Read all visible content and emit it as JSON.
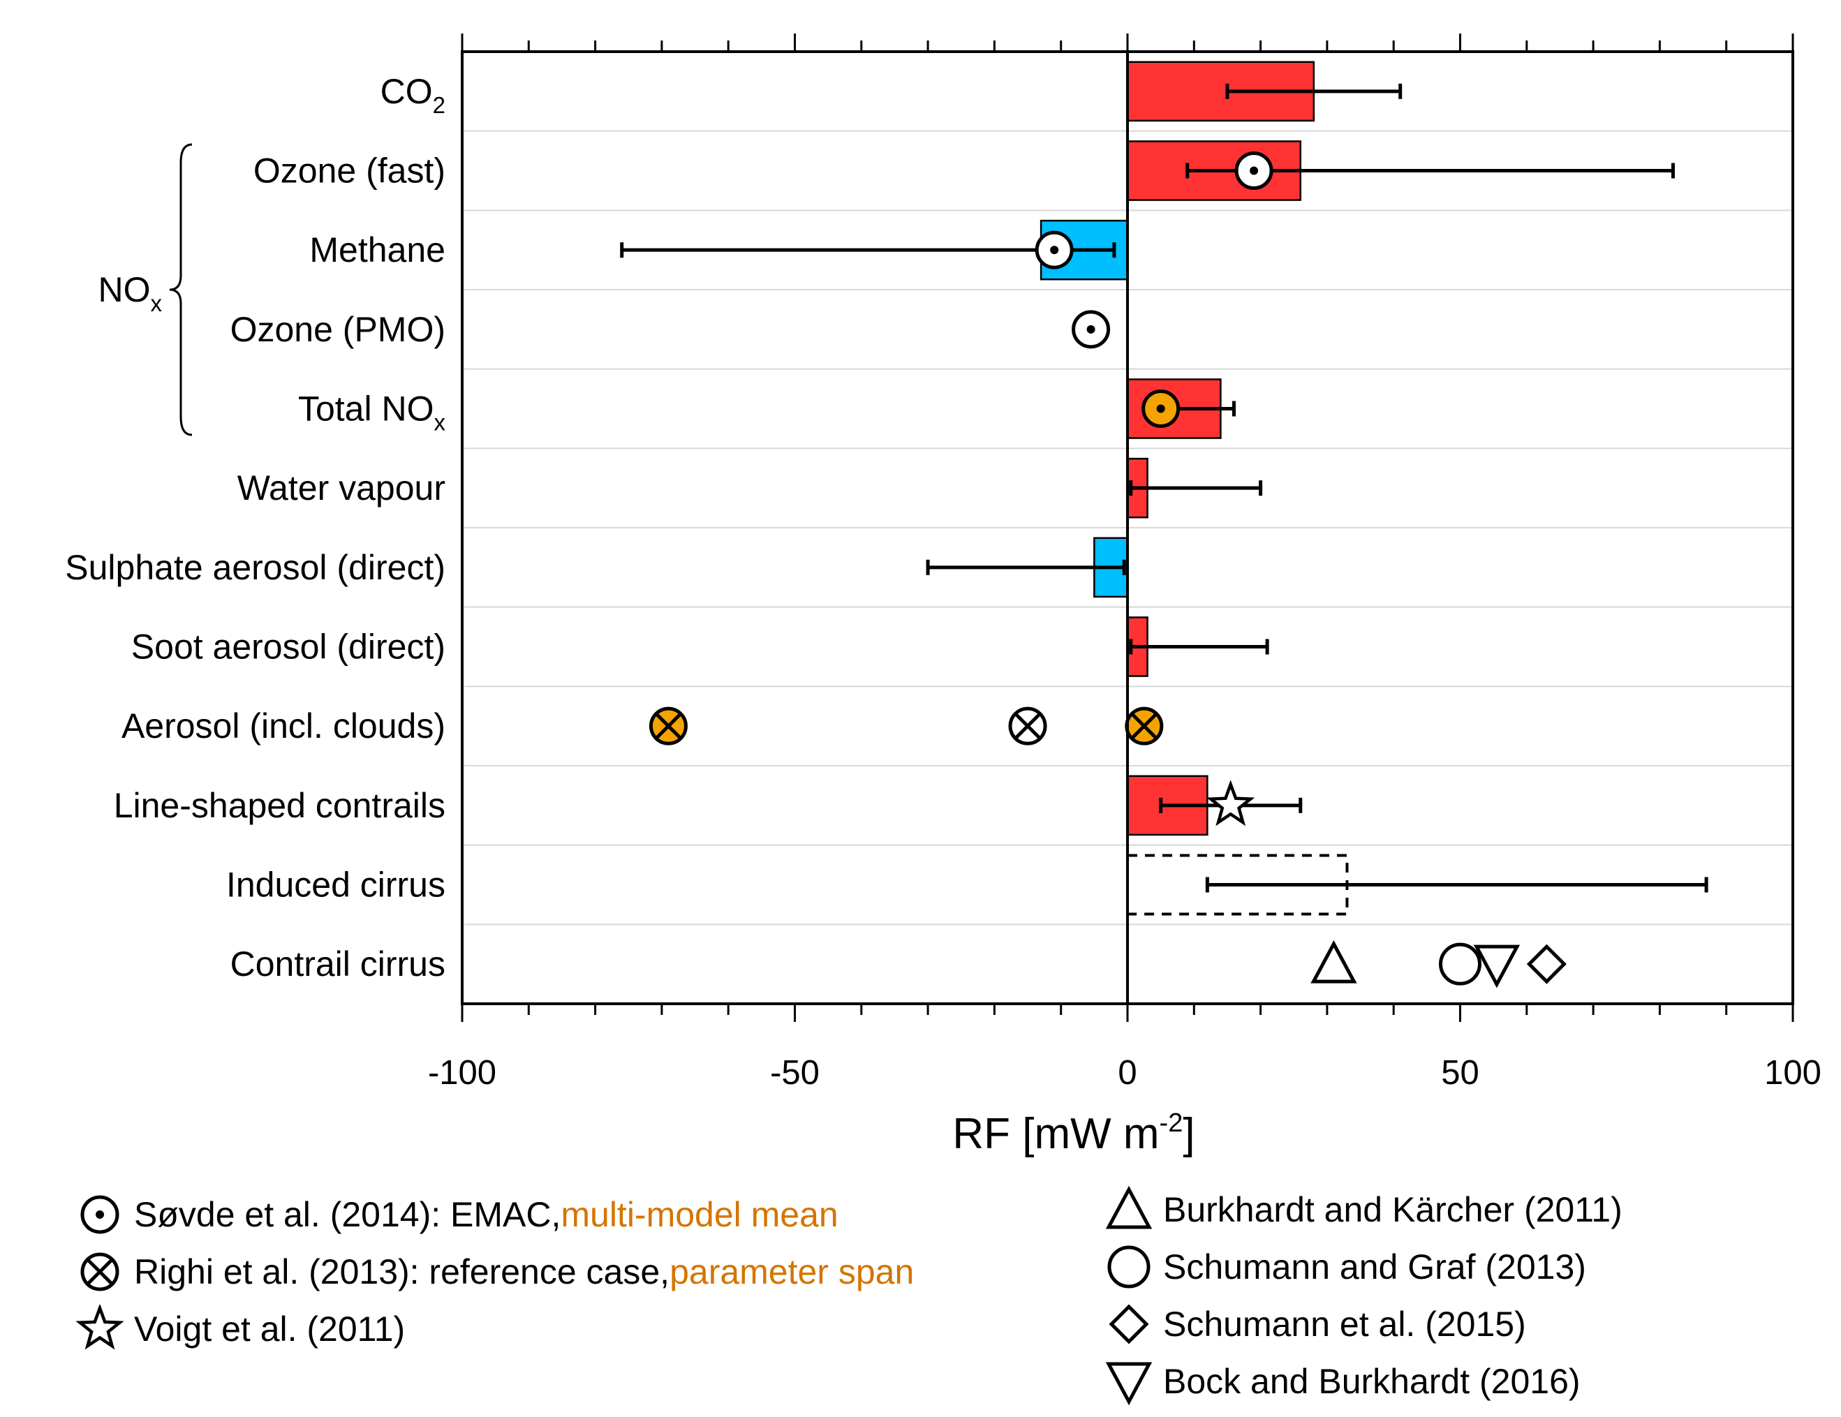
{
  "chart_data": {
    "type": "bar",
    "orientation": "horizontal",
    "title": "",
    "xlabel": "RF [mW m-2]",
    "xlabel_parts": {
      "main": "RF [mW m",
      "sup": "-2",
      "close": "]"
    },
    "xlim": [
      -100,
      100
    ],
    "xticks": [
      -100,
      -50,
      0,
      50,
      100
    ],
    "xtick_labels": [
      "-100",
      "-50",
      "0",
      "50",
      "100"
    ],
    "minor_tick_step": 10,
    "grid": "horizontal row separators",
    "categories": [
      {
        "id": "co2",
        "label": "CO",
        "sub": "2"
      },
      {
        "id": "ozone-fast",
        "label": "Ozone (fast)"
      },
      {
        "id": "methane",
        "label": "Methane"
      },
      {
        "id": "ozone-pmo",
        "label": "Ozone (PMO)"
      },
      {
        "id": "total-nox",
        "label": "Total NO",
        "sub": "x"
      },
      {
        "id": "water-vapour",
        "label": "Water vapour"
      },
      {
        "id": "sulphate",
        "label": "Sulphate aerosol (direct)"
      },
      {
        "id": "soot",
        "label": "Soot aerosol (direct)"
      },
      {
        "id": "aerosol-clouds",
        "label": "Aerosol (incl. clouds)"
      },
      {
        "id": "line-contrails",
        "label": "Line-shaped contrails"
      },
      {
        "id": "induced-cirrus",
        "label": "Induced cirrus"
      },
      {
        "id": "contrail-cirrus",
        "label": "Contrail cirrus"
      }
    ],
    "group_bracket": {
      "label": "NO",
      "sub": "x",
      "from": 1,
      "to": 4
    },
    "bars": [
      {
        "row": 0,
        "value": 28,
        "color": "red"
      },
      {
        "row": 1,
        "value": 26,
        "color": "red"
      },
      {
        "row": 2,
        "value": -13,
        "color": "blue"
      },
      {
        "row": 4,
        "value": 14,
        "color": "red"
      },
      {
        "row": 5,
        "value": 3,
        "color": "red"
      },
      {
        "row": 6,
        "value": -5,
        "color": "blue"
      },
      {
        "row": 7,
        "value": 3,
        "color": "red"
      },
      {
        "row": 9,
        "value": 12,
        "color": "red"
      },
      {
        "row": 10,
        "value": 33,
        "color": "none",
        "dashed": true
      }
    ],
    "error_bars": [
      {
        "row": 0,
        "low": 15,
        "high": 41
      },
      {
        "row": 1,
        "low": 9,
        "high": 82
      },
      {
        "row": 2,
        "low": -76,
        "high": -2
      },
      {
        "row": 4,
        "low": 4,
        "high": 16
      },
      {
        "row": 5,
        "low": 0.5,
        "high": 20
      },
      {
        "row": 6,
        "low": -30,
        "high": -0.5
      },
      {
        "row": 7,
        "low": 0.5,
        "high": 21
      },
      {
        "row": 9,
        "low": 5,
        "high": 26
      },
      {
        "row": 10,
        "low": 12,
        "high": 87
      }
    ],
    "markers": [
      {
        "row": 1,
        "x": 19,
        "shape": "circle-dot",
        "fill": "white"
      },
      {
        "row": 2,
        "x": -11,
        "shape": "circle-dot",
        "fill": "white"
      },
      {
        "row": 3,
        "x": -5.5,
        "shape": "circle-dot",
        "fill": "white"
      },
      {
        "row": 4,
        "x": 5,
        "shape": "circle-dot",
        "fill": "orange"
      },
      {
        "row": 8,
        "x": -69,
        "shape": "circle-x",
        "fill": "orange"
      },
      {
        "row": 8,
        "x": -15,
        "shape": "circle-x",
        "fill": "white"
      },
      {
        "row": 8,
        "x": 2.5,
        "shape": "circle-x",
        "fill": "orange"
      },
      {
        "row": 9,
        "x": 15.5,
        "shape": "star",
        "fill": "white"
      },
      {
        "row": 11,
        "x": 31,
        "shape": "triangle-up",
        "fill": "white"
      },
      {
        "row": 11,
        "x": 50,
        "shape": "circle",
        "fill": "white"
      },
      {
        "row": 11,
        "x": 55.5,
        "shape": "triangle-down",
        "fill": "white"
      },
      {
        "row": 11,
        "x": 63,
        "shape": "diamond",
        "fill": "white"
      }
    ],
    "colors": {
      "red": "#ff3333",
      "blue": "#00bfff",
      "orange": "#f5a300",
      "orange_text": "#d47500"
    }
  },
  "legend_left": [
    {
      "shape": "circle-dot",
      "text": "Søvde et al. (2014): EMAC, ",
      "orange": "multi-model mean"
    },
    {
      "shape": "circle-x",
      "text": "Righi et al. (2013): reference case, ",
      "orange": "parameter span"
    },
    {
      "shape": "star",
      "text": "Voigt et al. (2011)",
      "orange": ""
    }
  ],
  "legend_right": [
    {
      "shape": "triangle-up",
      "text": "Burkhardt and Kärcher (2011)"
    },
    {
      "shape": "circle",
      "text": "Schumann and Graf (2013)"
    },
    {
      "shape": "diamond",
      "text": "Schumann et al. (2015)"
    },
    {
      "shape": "triangle-down",
      "text": "Bock and Burkhardt (2016)"
    }
  ]
}
